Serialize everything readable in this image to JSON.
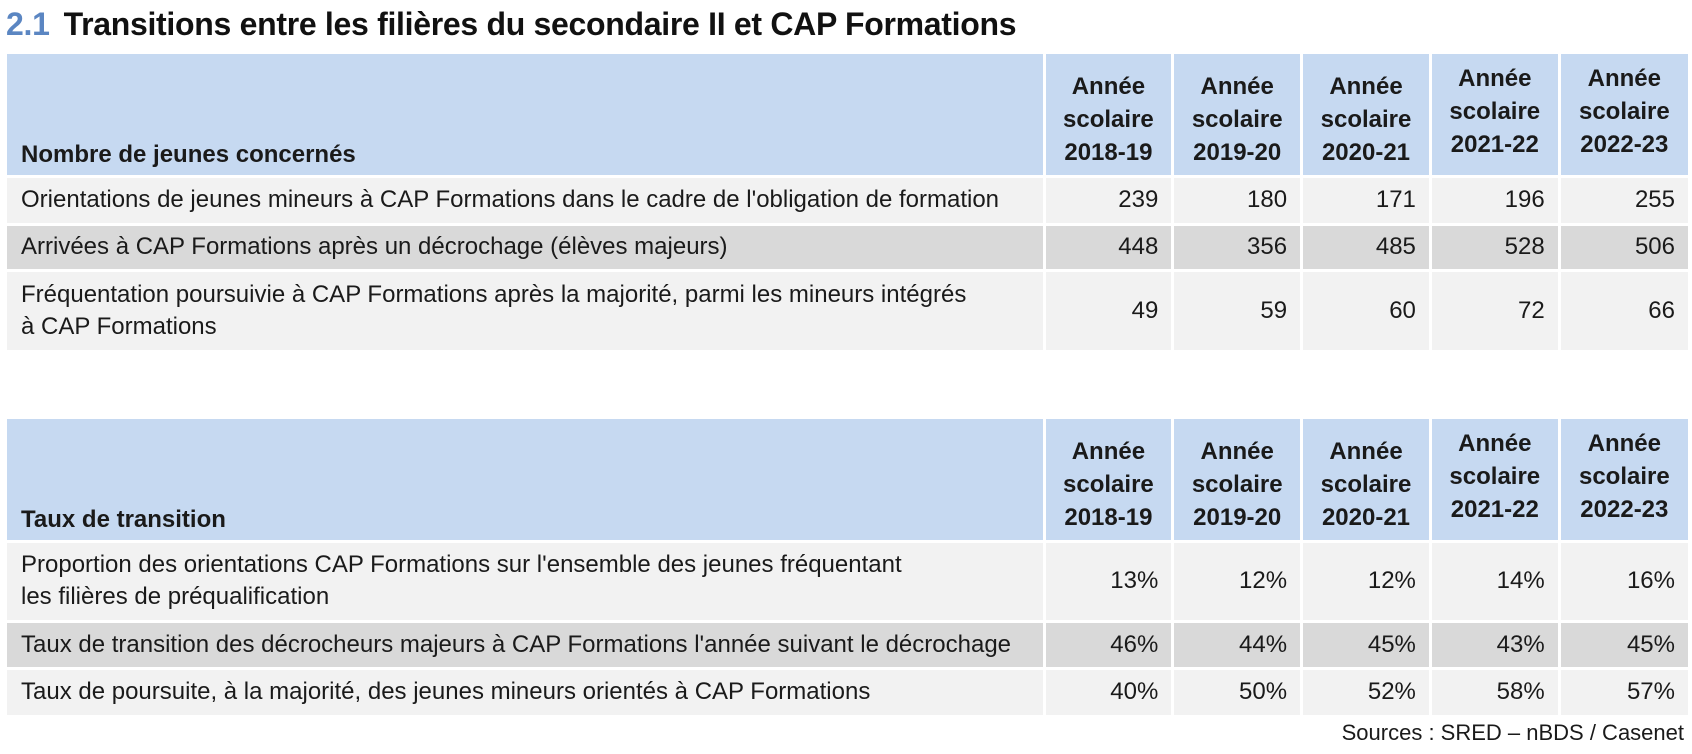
{
  "title": {
    "number": "2.1",
    "text": "Transitions entre les filières du secondaire II et CAP Formations"
  },
  "year_header": {
    "word1": "Année",
    "word2": "scolaire",
    "years": [
      "2018-19",
      "2019-20",
      "2020-21",
      "2021-22",
      "2022-23"
    ]
  },
  "table1": {
    "header": "Nombre de jeunes concernés",
    "rows": [
      {
        "label": [
          "Orientations de jeunes mineurs à CAP Formations dans le cadre de l'obligation de formation"
        ],
        "values": [
          "239",
          "180",
          "171",
          "196",
          "255"
        ]
      },
      {
        "label": [
          "Arrivées à CAP Formations après un décrochage (élèves majeurs)"
        ],
        "values": [
          "448",
          "356",
          "485",
          "528",
          "506"
        ]
      },
      {
        "label": [
          "Fréquentation poursuivie à CAP Formations après la majorité, parmi les mineurs intégrés",
          "à CAP Formations"
        ],
        "values": [
          "49",
          "59",
          "60",
          "72",
          "66"
        ]
      }
    ]
  },
  "table2": {
    "header": "Taux de transition",
    "rows": [
      {
        "label": [
          "Proportion des orientations CAP Formations sur l'ensemble des jeunes fréquentant",
          "les filières de préqualification"
        ],
        "values": [
          "13%",
          "12%",
          "12%",
          "14%",
          "16%"
        ]
      },
      {
        "label": [
          "Taux de transition des décrocheurs majeurs à CAP Formations l'année suivant le décrochage"
        ],
        "values": [
          "46%",
          "44%",
          "45%",
          "43%",
          "45%"
        ]
      },
      {
        "label": [
          "Taux de poursuite, à la majorité, des jeunes mineurs orientés à CAP Formations"
        ],
        "values": [
          "40%",
          "50%",
          "52%",
          "58%",
          "57%"
        ]
      }
    ]
  },
  "source": "Sources : SRED – nBDS / Casenet",
  "colors": {
    "title_number": "#5b86c2",
    "header_bg": "#c6d9f1",
    "row_light": "#f2f2f2",
    "row_dark": "#d9d9d9"
  }
}
